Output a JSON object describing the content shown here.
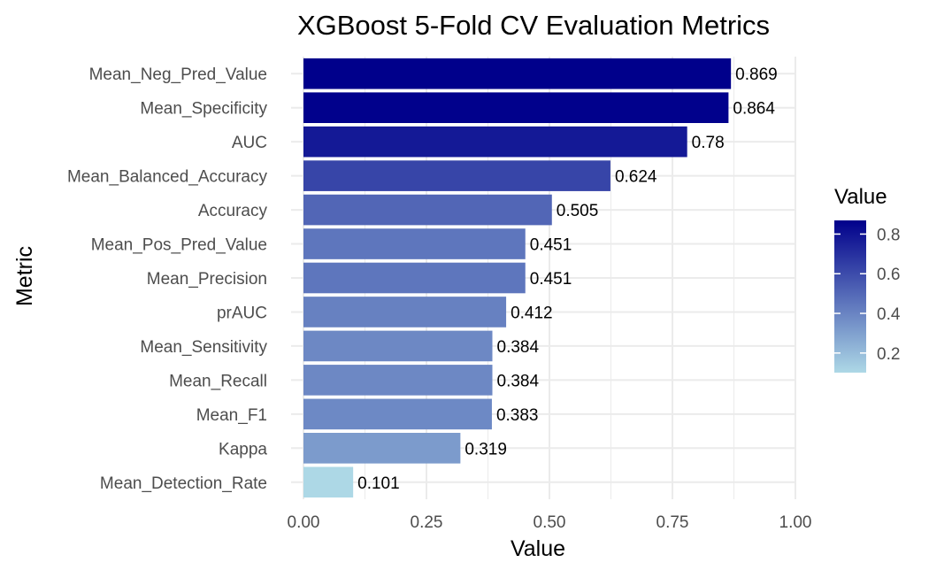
{
  "chart_data": {
    "type": "bar",
    "orientation": "horizontal",
    "title": "XGBoost 5-Fold CV Evaluation Metrics",
    "xlabel": "Value",
    "ylabel": "Metric",
    "xlim": [
      0,
      1
    ],
    "x_ticks": [
      "0.00",
      "0.25",
      "0.50",
      "0.75",
      "1.00"
    ],
    "grid": true,
    "categories": [
      "Mean_Neg_Pred_Value",
      "Mean_Specificity",
      "AUC",
      "Mean_Balanced_Accuracy",
      "Accuracy",
      "Mean_Pos_Pred_Value",
      "Mean_Precision",
      "prAUC",
      "Mean_Sensitivity",
      "Mean_Recall",
      "Mean_F1",
      "Kappa",
      "Mean_Detection_Rate"
    ],
    "values": [
      0.869,
      0.864,
      0.78,
      0.624,
      0.505,
      0.451,
      0.451,
      0.412,
      0.384,
      0.384,
      0.383,
      0.319,
      0.101
    ],
    "value_labels": [
      "0.869",
      "0.864",
      "0.78",
      "0.624",
      "0.505",
      "0.451",
      "0.451",
      "0.412",
      "0.384",
      "0.384",
      "0.383",
      "0.319",
      "0.101"
    ],
    "legend": {
      "title": "Value",
      "position": "right",
      "ticks": [
        "0.2",
        "0.4",
        "0.6",
        "0.8"
      ],
      "tick_values": [
        0.2,
        0.4,
        0.6,
        0.8
      ],
      "range": [
        0.101,
        0.869
      ],
      "color_low": "#add8e6",
      "color_high": "#00008b"
    }
  }
}
